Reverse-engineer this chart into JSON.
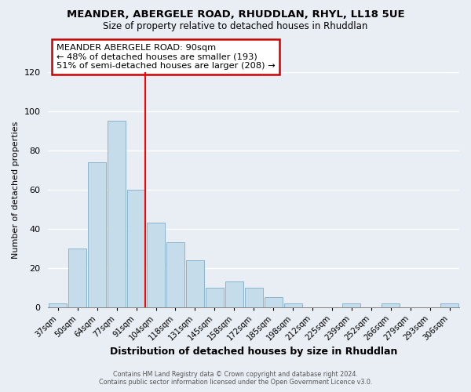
{
  "title1": "MEANDER, ABERGELE ROAD, RHUDDLAN, RHYL, LL18 5UE",
  "title2": "Size of property relative to detached houses in Rhuddlan",
  "xlabel": "Distribution of detached houses by size in Rhuddlan",
  "ylabel": "Number of detached properties",
  "bar_labels": [
    "37sqm",
    "50sqm",
    "64sqm",
    "77sqm",
    "91sqm",
    "104sqm",
    "118sqm",
    "131sqm",
    "145sqm",
    "158sqm",
    "172sqm",
    "185sqm",
    "198sqm",
    "212sqm",
    "225sqm",
    "239sqm",
    "252sqm",
    "266sqm",
    "279sqm",
    "293sqm",
    "306sqm"
  ],
  "bar_values": [
    2,
    30,
    74,
    95,
    60,
    43,
    33,
    24,
    10,
    13,
    10,
    5,
    2,
    0,
    0,
    2,
    0,
    2,
    0,
    0,
    2
  ],
  "bar_color": "#c5dcea",
  "bar_edge_color": "#8ab4cc",
  "red_line_index": 4,
  "ylim": [
    0,
    120
  ],
  "yticks": [
    0,
    20,
    40,
    60,
    80,
    100,
    120
  ],
  "annotation_title": "MEANDER ABERGELE ROAD: 90sqm",
  "annotation_line1": "← 48% of detached houses are smaller (193)",
  "annotation_line2": "51% of semi-detached houses are larger (208) →",
  "annotation_box_color": "#ffffff",
  "annotation_box_edge": "#cc0000",
  "footer1": "Contains HM Land Registry data © Crown copyright and database right 2024.",
  "footer2": "Contains public sector information licensed under the Open Government Licence v3.0.",
  "background_color": "#e8eef4",
  "plot_bg_color": "#e8eef4",
  "grid_color": "#ffffff",
  "title_fontsize": 9.5,
  "subtitle_fontsize": 8.5,
  "ylabel_fontsize": 8,
  "xlabel_fontsize": 9
}
